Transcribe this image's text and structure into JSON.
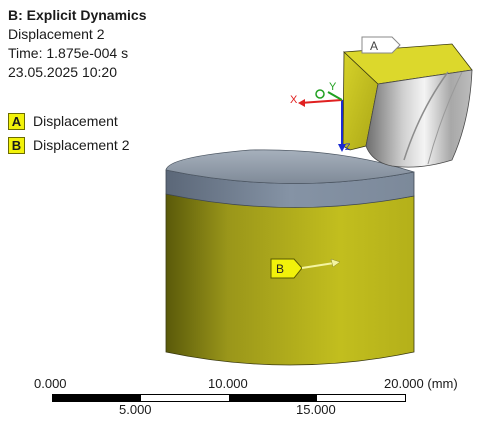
{
  "info": {
    "title": "B: Explicit Dynamics",
    "result": "Displacement 2",
    "time": "Time: 1.875e-004 s",
    "date": "23.05.2025 10:20"
  },
  "legend": [
    {
      "key": "A",
      "label": "Displacement"
    },
    {
      "key": "B",
      "label": "Displacement 2"
    }
  ],
  "triad": {
    "x": "X",
    "y": "Y",
    "z": "Z"
  },
  "markers": {
    "a": "A",
    "b": "B"
  },
  "scale": {
    "top_labels": [
      "0.000",
      "10.000",
      "20.000 (mm)"
    ],
    "bottom_labels": [
      "5.000",
      "15.000"
    ]
  },
  "colors": {
    "bc_yellow": "#f2f20a",
    "part_yellow": "#c8c41a",
    "top_gray": "#8a96a6"
  }
}
